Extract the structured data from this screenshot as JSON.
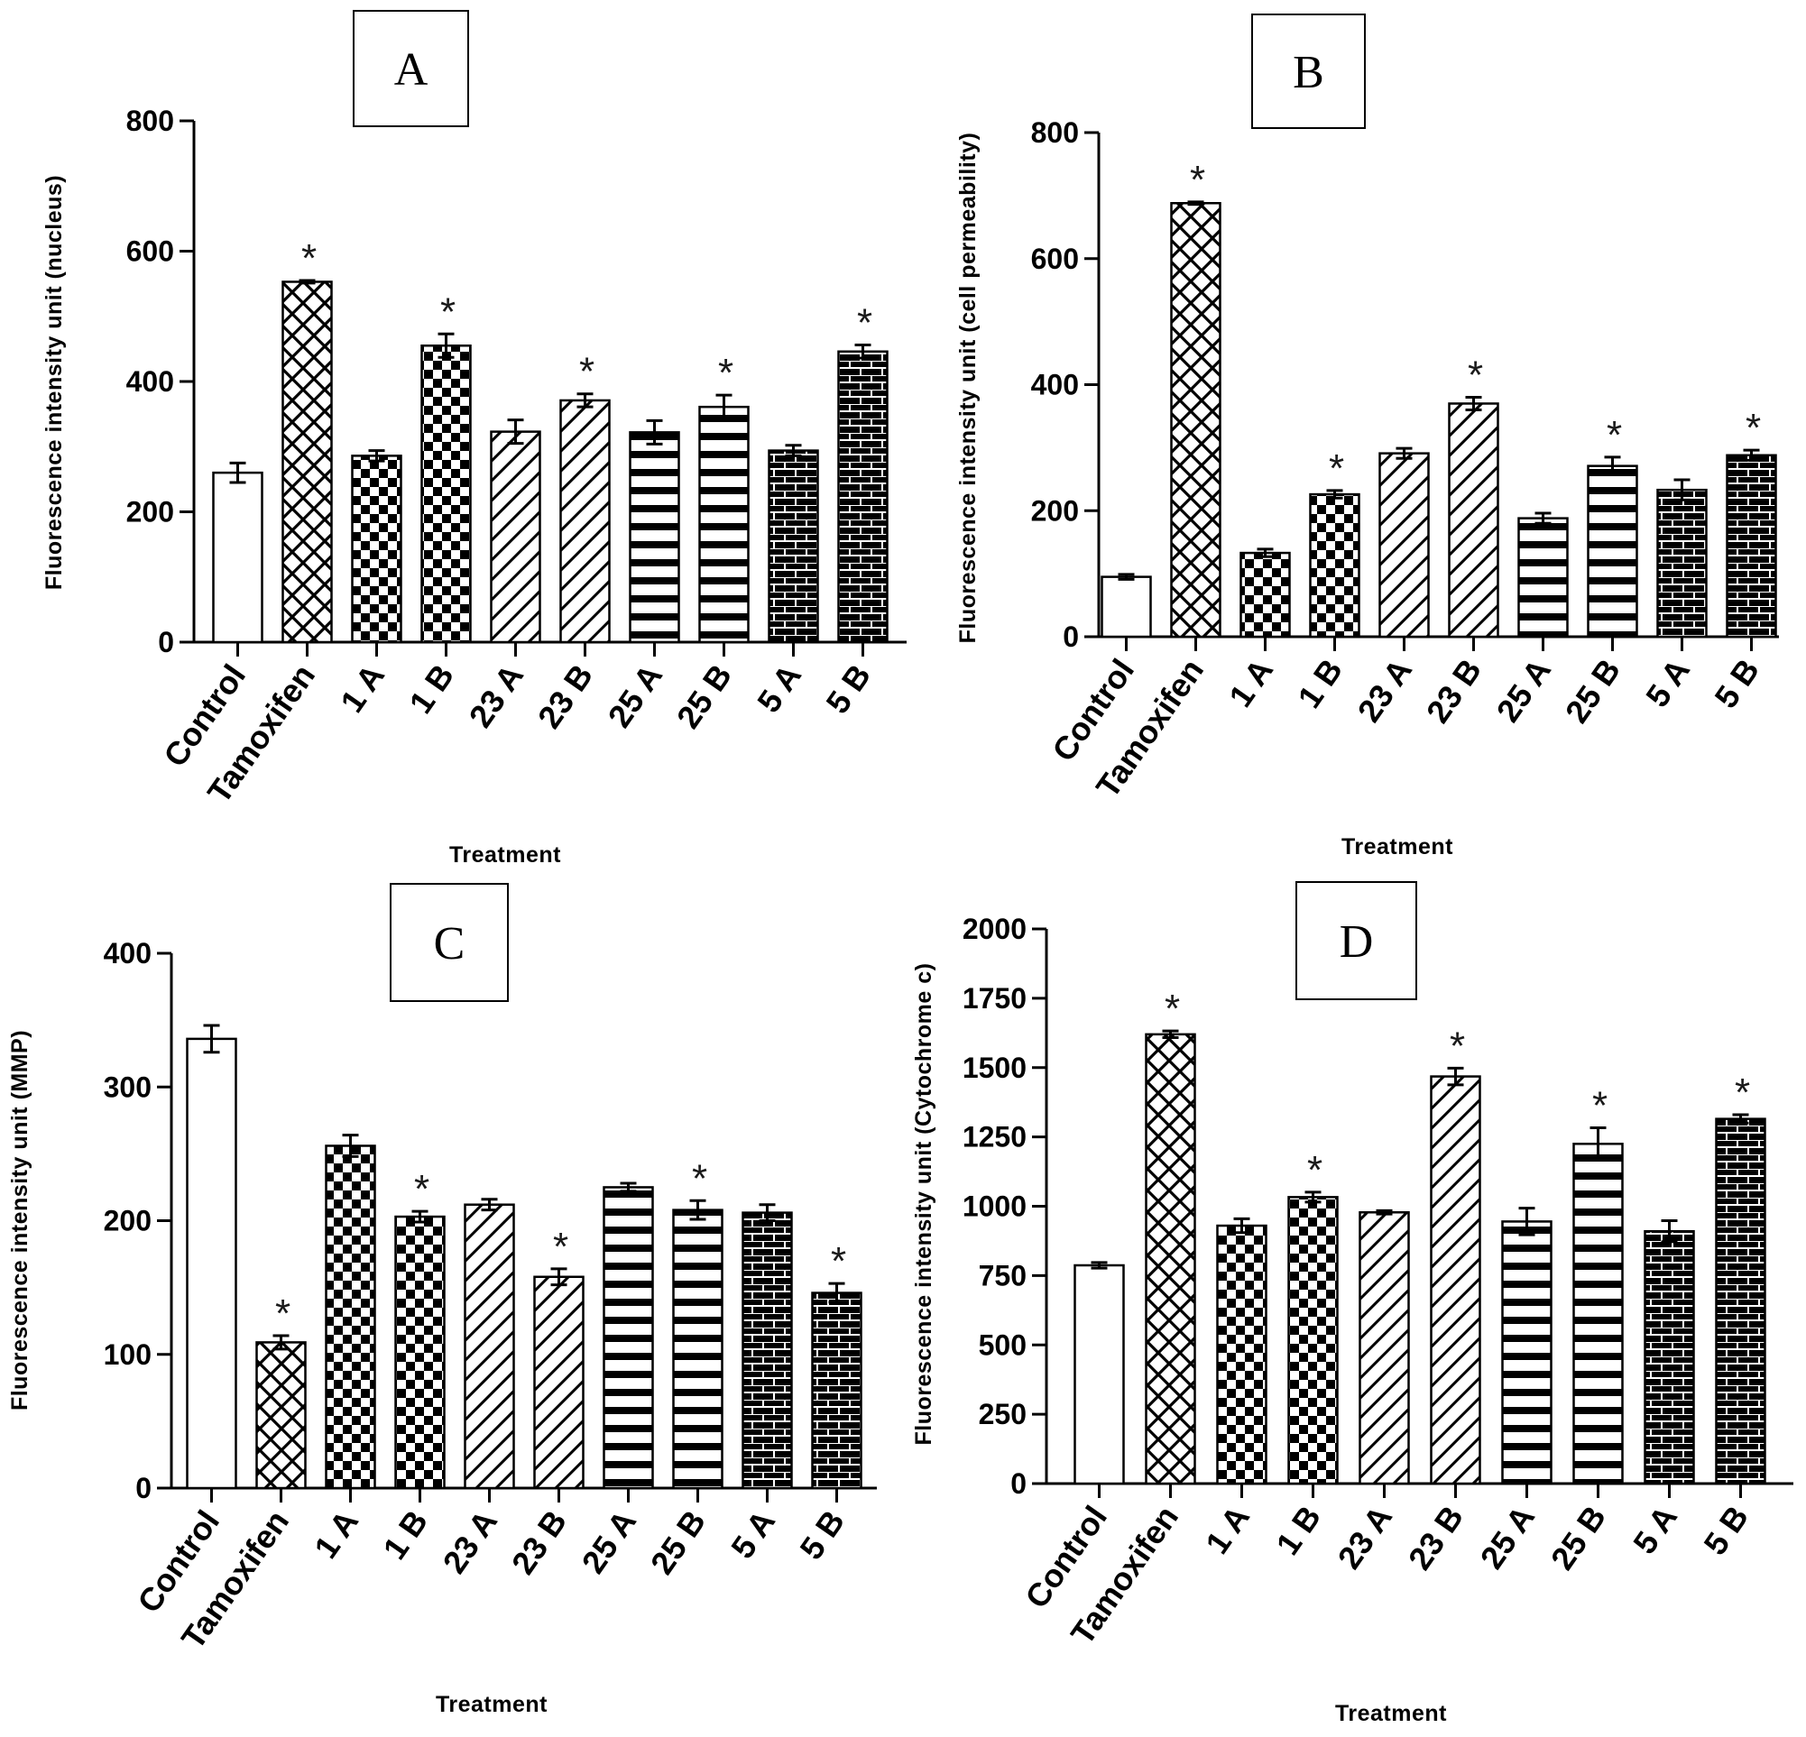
{
  "chart_data": [
    {
      "type": "bar",
      "panel_label": "A",
      "categories": [
        "Control",
        "Tamoxifen",
        "1 A",
        "1 B",
        "23 A",
        "23 B",
        "25 A",
        "25 B",
        "5 A",
        "5 B"
      ],
      "values": [
        260,
        553,
        286,
        455,
        323,
        371,
        322,
        361,
        294,
        446
      ],
      "errors": [
        15,
        2,
        8,
        18,
        18,
        10,
        18,
        18,
        8,
        10
      ],
      "significant": [
        false,
        true,
        false,
        true,
        false,
        true,
        false,
        true,
        false,
        true
      ],
      "ylim": [
        0,
        800
      ],
      "yticks": [
        "0",
        "200",
        "400",
        "600",
        "800"
      ],
      "xlabel": "Treatment",
      "ylabel": "Fluorescence intensity unit (nucleus)",
      "marker": "*"
    },
    {
      "type": "bar",
      "panel_label": "B",
      "categories": [
        "Control",
        "Tamoxifen",
        "1 A",
        "1 B",
        "23 A",
        "23 B",
        "25 A",
        "25 B",
        "5 A",
        "5 B"
      ],
      "values": [
        95,
        688,
        133,
        226,
        291,
        370,
        188,
        271,
        233,
        288
      ],
      "errors": [
        4,
        2,
        6,
        6,
        8,
        10,
        8,
        14,
        16,
        8
      ],
      "significant": [
        false,
        true,
        false,
        true,
        false,
        true,
        false,
        true,
        false,
        true
      ],
      "ylim": [
        0,
        800
      ],
      "yticks": [
        "0",
        "200",
        "400",
        "600",
        "800"
      ],
      "xlabel": "Treatment",
      "ylabel": "Fluorescence intensity unit (cell permeability)",
      "marker": "*"
    },
    {
      "type": "bar",
      "panel_label": "C",
      "categories": [
        "Control",
        "Tamoxifen",
        "1 A",
        "1 B",
        "23 A",
        "23 B",
        "25 A",
        "25 B",
        "5 A",
        "5 B"
      ],
      "values": [
        336,
        109,
        256,
        203,
        212,
        158,
        225,
        208,
        206,
        146
      ],
      "errors": [
        10,
        5,
        8,
        4,
        4,
        6,
        3,
        7,
        6,
        7
      ],
      "significant": [
        false,
        true,
        false,
        true,
        false,
        true,
        false,
        true,
        false,
        true
      ],
      "ylim": [
        0,
        400
      ],
      "yticks": [
        "0",
        "100",
        "200",
        "300",
        "400"
      ],
      "xlabel": "Treatment",
      "ylabel": "Fluorescence intensity unit (MMP)",
      "marker": "*"
    },
    {
      "type": "bar",
      "panel_label": "D",
      "categories": [
        "Control",
        "Tamoxifen",
        "1 A",
        "1 B",
        "23 A",
        "23 B",
        "25 A",
        "25 B",
        "5 A",
        "5 B"
      ],
      "values": [
        787,
        1620,
        930,
        1033,
        978,
        1468,
        945,
        1225,
        910,
        1315
      ],
      "errors": [
        10,
        12,
        25,
        18,
        6,
        30,
        48,
        58,
        38,
        15
      ],
      "significant": [
        false,
        true,
        false,
        true,
        false,
        true,
        false,
        true,
        false,
        true
      ],
      "ylim": [
        0,
        2000
      ],
      "yticks": [
        "0",
        "250",
        "500",
        "750",
        "1000",
        "1250",
        "1500",
        "1750",
        "2000"
      ],
      "xlabel": "Treatment",
      "ylabel": "Fluorescence intensity unit (Cytochrome c)",
      "marker": "*"
    }
  ]
}
